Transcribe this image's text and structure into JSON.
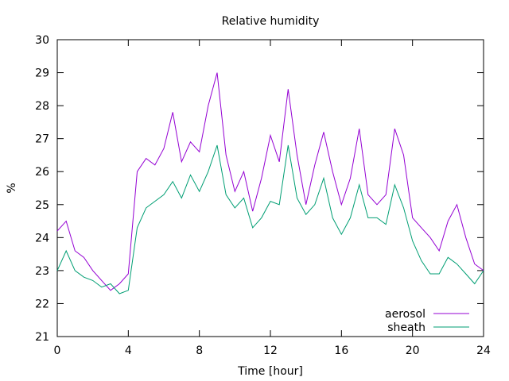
{
  "chart_data": {
    "type": "line",
    "title": "Relative humidity",
    "xlabel": "Time [hour]",
    "ylabel": "%",
    "xlim": [
      0,
      24
    ],
    "ylim": [
      21,
      30
    ],
    "xticks": [
      0,
      4,
      8,
      12,
      16,
      20,
      24
    ],
    "yticks": [
      21,
      22,
      23,
      24,
      25,
      26,
      27,
      28,
      29,
      30
    ],
    "grid": false,
    "legend_position": "bottom-right",
    "x": [
      0,
      0.5,
      1,
      1.5,
      2,
      2.5,
      3,
      3.5,
      4,
      4.5,
      5,
      5.5,
      6,
      6.5,
      7,
      7.5,
      8,
      8.5,
      9,
      9.5,
      10,
      10.5,
      11,
      11.5,
      12,
      12.5,
      13,
      13.5,
      14,
      14.5,
      15,
      15.5,
      16,
      16.5,
      17,
      17.5,
      18,
      18.5,
      19,
      19.5,
      20,
      20.5,
      21,
      21.5,
      22,
      22.5,
      23,
      23.5,
      24
    ],
    "series": [
      {
        "name": "aerosol",
        "color": "#9400d3",
        "values": [
          24.2,
          24.5,
          23.6,
          23.4,
          23.0,
          22.7,
          22.4,
          22.6,
          22.9,
          26.0,
          26.4,
          26.2,
          26.7,
          27.8,
          26.3,
          26.9,
          26.6,
          28.0,
          29.0,
          26.5,
          25.4,
          26.0,
          24.8,
          25.8,
          27.1,
          26.3,
          28.5,
          26.5,
          25.0,
          26.2,
          27.2,
          26.0,
          25.0,
          25.8,
          27.3,
          25.3,
          25.0,
          25.3,
          27.3,
          26.5,
          24.6,
          24.3,
          24.0,
          23.6,
          24.5,
          25.0,
          24.0,
          23.2,
          23.0
        ]
      },
      {
        "name": "sheath",
        "color": "#009e73",
        "values": [
          23.0,
          23.6,
          23.0,
          22.8,
          22.7,
          22.5,
          22.6,
          22.3,
          22.4,
          24.3,
          24.9,
          25.1,
          25.3,
          25.7,
          25.2,
          25.9,
          25.4,
          26.0,
          26.8,
          25.3,
          24.9,
          25.2,
          24.3,
          24.6,
          25.1,
          25.0,
          26.8,
          25.2,
          24.7,
          25.0,
          25.8,
          24.6,
          24.1,
          24.6,
          25.6,
          24.6,
          24.6,
          24.4,
          25.6,
          24.9,
          23.9,
          23.3,
          22.9,
          22.9,
          23.4,
          23.2,
          22.9,
          22.6,
          23.0
        ]
      }
    ]
  }
}
